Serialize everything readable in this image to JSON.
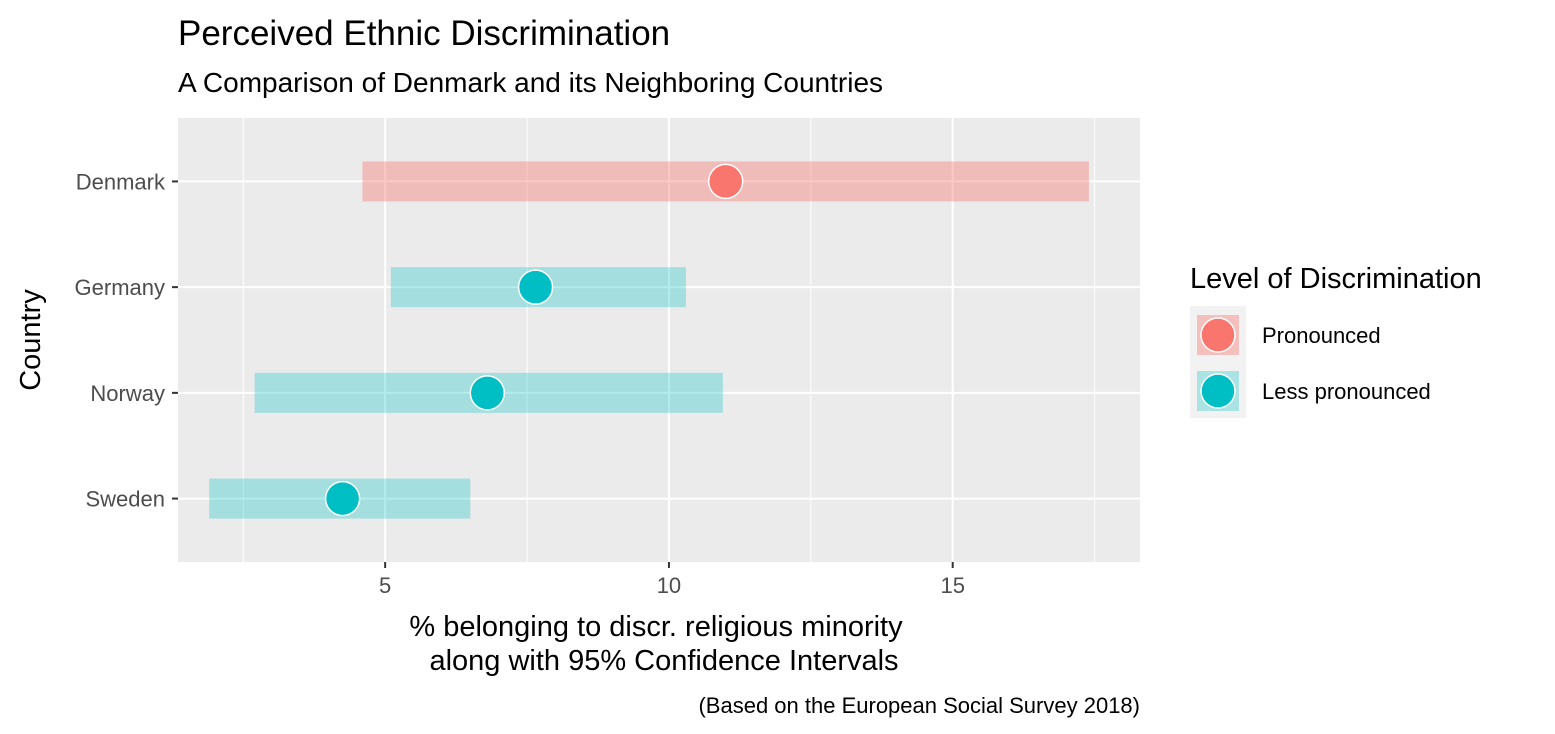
{
  "chart_data": {
    "type": "dot-interval",
    "title": "Perceived Ethnic Discrimination",
    "subtitle": "A Comparison of Denmark and its Neighboring Countries",
    "xlabel_lines": [
      "% belonging to discr. religious minority",
      "along with 95% Confidence Intervals"
    ],
    "ylabel": "Country",
    "caption": "(Based on the European Social Survey 2018)",
    "xlim": [
      1.35,
      18.3
    ],
    "x_ticks": [
      5,
      10,
      15
    ],
    "x_minor_ticks": [
      2.5,
      7.5,
      12.5,
      17.5
    ],
    "categories": [
      "Denmark",
      "Germany",
      "Norway",
      "Sweden"
    ],
    "estimates": [
      11.0,
      7.65,
      6.8,
      4.25
    ],
    "ci_low": [
      4.6,
      5.1,
      2.7,
      1.9
    ],
    "ci_high": [
      17.4,
      10.3,
      10.95,
      6.5
    ],
    "groups": [
      "Pronounced",
      "Less pronounced",
      "Less pronounced",
      "Less pronounced"
    ],
    "legend": {
      "title": "Level of Discrimination",
      "entries": [
        "Pronounced",
        "Less pronounced"
      ],
      "position": "right"
    },
    "colors": {
      "Pronounced": "#F8766D",
      "Less pronounced": "#00BFC4",
      "panel": "#EBEBEB",
      "grid": "#FFFFFF"
    },
    "grid": true
  }
}
